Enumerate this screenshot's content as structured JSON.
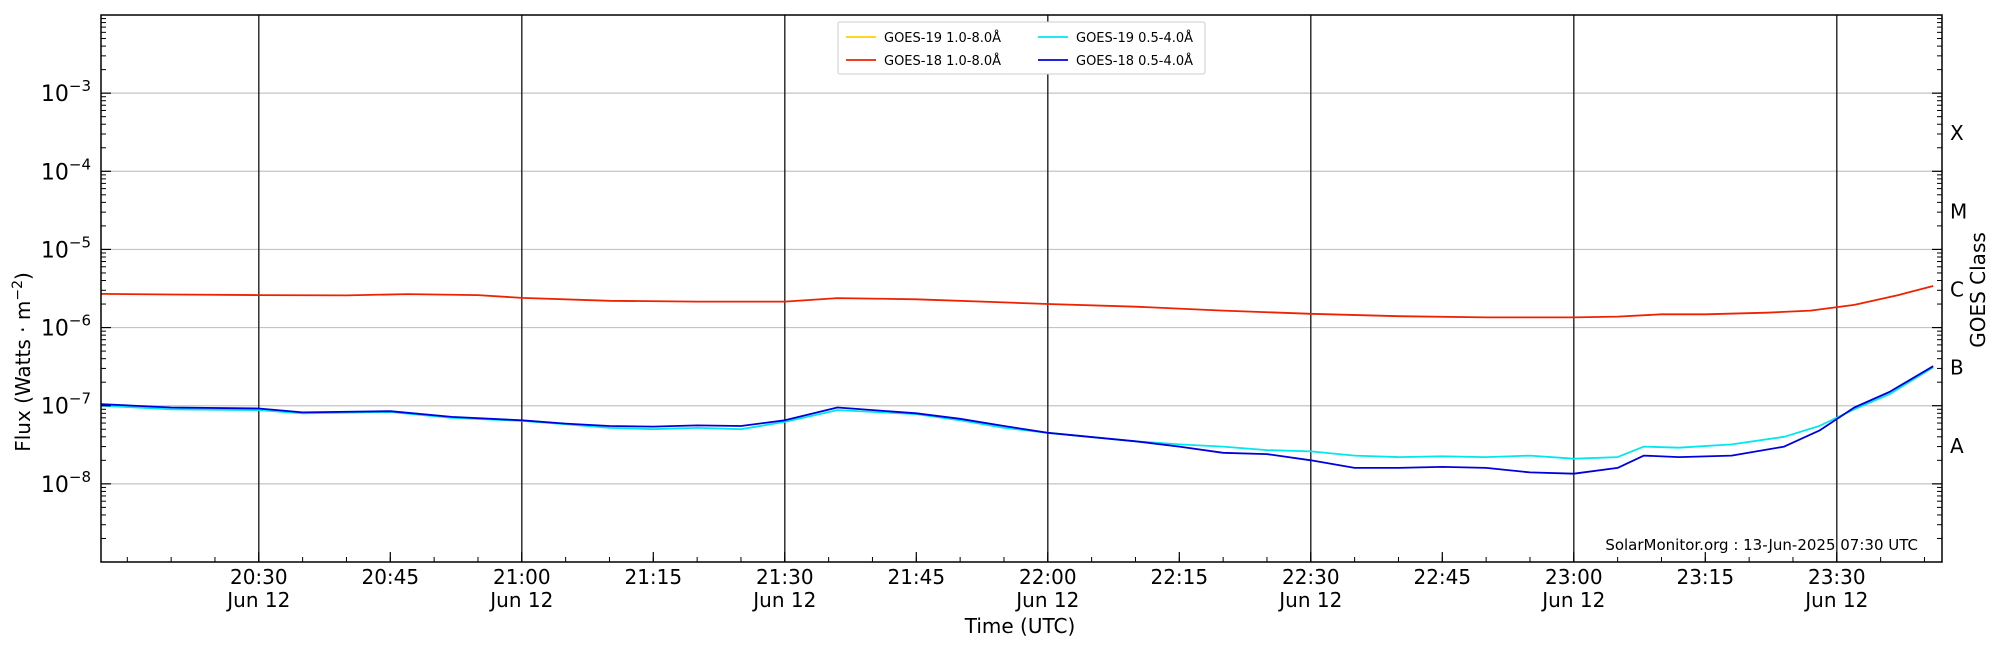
{
  "chart_data": {
    "type": "line",
    "y_scale": "log",
    "ylim": [
      1e-09,
      0.01
    ],
    "xlim": [
      "2025-06-12 20:12",
      "2025-06-12 23:42"
    ],
    "grid": "horizontal at decades; vertical lines at half-hour marks",
    "xlabel": "Time (UTC)",
    "ylabel_main": "Flux (Watts · m",
    "ylabel_sup": "−2",
    "ylabel_close": ")",
    "right_axis_label": "GOES Class",
    "y_ticks": [
      {
        "value": 1e-08,
        "base": "10",
        "exp": "−8"
      },
      {
        "value": 1e-07,
        "base": "10",
        "exp": "−7"
      },
      {
        "value": 1e-06,
        "base": "10",
        "exp": "−6"
      },
      {
        "value": 1e-05,
        "base": "10",
        "exp": "−5"
      },
      {
        "value": 0.0001,
        "base": "10",
        "exp": "−4"
      },
      {
        "value": 0.001,
        "base": "10",
        "exp": "−3"
      }
    ],
    "class_ticks": [
      {
        "label": "A",
        "value": 3.16e-08
      },
      {
        "label": "B",
        "value": 3.16e-07
      },
      {
        "label": "C",
        "value": 3.16e-06
      },
      {
        "label": "M",
        "value": 3.16e-05
      },
      {
        "label": "X",
        "value": 0.000316
      }
    ],
    "x_ticks": [
      {
        "time": "20:30",
        "top": "20:30",
        "bottom": "Jun 12"
      },
      {
        "time": "20:45",
        "top": "20:45",
        "bottom": ""
      },
      {
        "time": "21:00",
        "top": "21:00",
        "bottom": "Jun 12"
      },
      {
        "time": "21:15",
        "top": "21:15",
        "bottom": ""
      },
      {
        "time": "21:30",
        "top": "21:30",
        "bottom": "Jun 12"
      },
      {
        "time": "21:45",
        "top": "21:45",
        "bottom": ""
      },
      {
        "time": "22:00",
        "top": "22:00",
        "bottom": "Jun 12"
      },
      {
        "time": "22:15",
        "top": "22:15",
        "bottom": ""
      },
      {
        "time": "22:30",
        "top": "22:30",
        "bottom": "Jun 12"
      },
      {
        "time": "22:45",
        "top": "22:45",
        "bottom": ""
      },
      {
        "time": "23:00",
        "top": "23:00",
        "bottom": "Jun 12"
      },
      {
        "time": "23:15",
        "top": "23:15",
        "bottom": ""
      },
      {
        "time": "23:30",
        "top": "23:30",
        "bottom": "Jun 12"
      }
    ],
    "vertical_lines": [
      "20:30",
      "21:00",
      "21:30",
      "22:00",
      "22:30",
      "23:00",
      "23:30"
    ],
    "legend": {
      "position": "top-center",
      "columns": 2
    },
    "annotation": "SolarMonitor.org : 13-Jun-2025 07:30 UTC",
    "series": [
      {
        "name": "GOES-19 1.0-8.0Å",
        "color": "#ffd000",
        "points": []
      },
      {
        "name": "GOES-18 1.0-8.0Å",
        "color": "#ee2200",
        "points": [
          [
            "20:12",
            2.7e-06
          ],
          [
            "20:20",
            2.65e-06
          ],
          [
            "20:30",
            2.6e-06
          ],
          [
            "20:40",
            2.58e-06
          ],
          [
            "20:47",
            2.68e-06
          ],
          [
            "20:55",
            2.6e-06
          ],
          [
            "21:00",
            2.4e-06
          ],
          [
            "21:10",
            2.2e-06
          ],
          [
            "21:20",
            2.15e-06
          ],
          [
            "21:30",
            2.15e-06
          ],
          [
            "21:36",
            2.38e-06
          ],
          [
            "21:45",
            2.3e-06
          ],
          [
            "21:55",
            2.1e-06
          ],
          [
            "22:00",
            2e-06
          ],
          [
            "22:10",
            1.85e-06
          ],
          [
            "22:20",
            1.65e-06
          ],
          [
            "22:30",
            1.5e-06
          ],
          [
            "22:40",
            1.4e-06
          ],
          [
            "22:50",
            1.35e-06
          ],
          [
            "23:00",
            1.35e-06
          ],
          [
            "23:05",
            1.38e-06
          ],
          [
            "23:10",
            1.48e-06
          ],
          [
            "23:15",
            1.48e-06
          ],
          [
            "23:22",
            1.55e-06
          ],
          [
            "23:27",
            1.65e-06
          ],
          [
            "23:32",
            1.95e-06
          ],
          [
            "23:37",
            2.6e-06
          ],
          [
            "23:41",
            3.4e-06
          ]
        ]
      },
      {
        "name": "GOES-19 0.5-4.0Å",
        "color": "#00e8ee",
        "points": [
          [
            "20:12",
            1e-07
          ],
          [
            "20:20",
            9e-08
          ],
          [
            "20:30",
            8.8e-08
          ],
          [
            "20:35",
            8e-08
          ],
          [
            "20:45",
            8.3e-08
          ],
          [
            "20:52",
            7e-08
          ],
          [
            "21:00",
            6.4e-08
          ],
          [
            "21:05",
            5.8e-08
          ],
          [
            "21:10",
            5.2e-08
          ],
          [
            "21:15",
            5e-08
          ],
          [
            "21:20",
            5.2e-08
          ],
          [
            "21:25",
            5e-08
          ],
          [
            "21:30",
            6.2e-08
          ],
          [
            "21:36",
            8.8e-08
          ],
          [
            "21:45",
            7.8e-08
          ],
          [
            "21:50",
            6.5e-08
          ],
          [
            "21:55",
            5.2e-08
          ],
          [
            "22:00",
            4.5e-08
          ],
          [
            "22:10",
            3.5e-08
          ],
          [
            "22:15",
            3.2e-08
          ],
          [
            "22:20",
            3e-08
          ],
          [
            "22:25",
            2.7e-08
          ],
          [
            "22:30",
            2.6e-08
          ],
          [
            "22:35",
            2.3e-08
          ],
          [
            "22:40",
            2.2e-08
          ],
          [
            "22:45",
            2.25e-08
          ],
          [
            "22:50",
            2.2e-08
          ],
          [
            "22:55",
            2.3e-08
          ],
          [
            "23:00",
            2.1e-08
          ],
          [
            "23:05",
            2.2e-08
          ],
          [
            "23:08",
            3e-08
          ],
          [
            "23:12",
            2.9e-08
          ],
          [
            "23:18",
            3.2e-08
          ],
          [
            "23:24",
            4e-08
          ],
          [
            "23:28",
            5.5e-08
          ],
          [
            "23:32",
            9e-08
          ],
          [
            "23:36",
            1.4e-07
          ],
          [
            "23:41",
            3.1e-07
          ]
        ]
      },
      {
        "name": "GOES-18 0.5-4.0Å",
        "color": "#0000dd",
        "points": [
          [
            "20:12",
            1.05e-07
          ],
          [
            "20:20",
            9.5e-08
          ],
          [
            "20:30",
            9.2e-08
          ],
          [
            "20:35",
            8.2e-08
          ],
          [
            "20:45",
            8.5e-08
          ],
          [
            "20:52",
            7.2e-08
          ],
          [
            "21:00",
            6.5e-08
          ],
          [
            "21:05",
            5.9e-08
          ],
          [
            "21:10",
            5.5e-08
          ],
          [
            "21:15",
            5.4e-08
          ],
          [
            "21:20",
            5.6e-08
          ],
          [
            "21:25",
            5.5e-08
          ],
          [
            "21:30",
            6.5e-08
          ],
          [
            "21:36",
            9.5e-08
          ],
          [
            "21:45",
            8e-08
          ],
          [
            "21:50",
            6.8e-08
          ],
          [
            "21:55",
            5.5e-08
          ],
          [
            "22:00",
            4.5e-08
          ],
          [
            "22:10",
            3.5e-08
          ],
          [
            "22:15",
            3e-08
          ],
          [
            "22:20",
            2.5e-08
          ],
          [
            "22:25",
            2.4e-08
          ],
          [
            "22:30",
            2e-08
          ],
          [
            "22:35",
            1.6e-08
          ],
          [
            "22:40",
            1.6e-08
          ],
          [
            "22:45",
            1.65e-08
          ],
          [
            "22:50",
            1.6e-08
          ],
          [
            "22:55",
            1.4e-08
          ],
          [
            "23:00",
            1.35e-08
          ],
          [
            "23:05",
            1.6e-08
          ],
          [
            "23:08",
            2.3e-08
          ],
          [
            "23:12",
            2.2e-08
          ],
          [
            "23:18",
            2.3e-08
          ],
          [
            "23:24",
            3e-08
          ],
          [
            "23:28",
            4.8e-08
          ],
          [
            "23:32",
            9.5e-08
          ],
          [
            "23:36",
            1.5e-07
          ],
          [
            "23:41",
            3.2e-07
          ]
        ]
      }
    ]
  }
}
